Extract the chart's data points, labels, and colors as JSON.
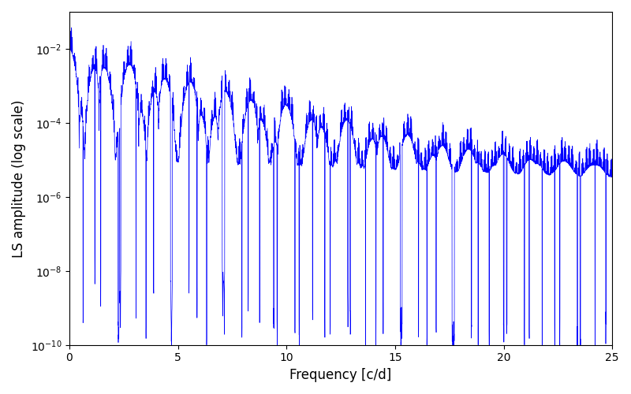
{
  "xlabel": "Frequency [c/d]",
  "ylabel": "LS amplitude (log scale)",
  "line_color": "#0000ff",
  "line_width": 0.5,
  "xlim": [
    0,
    25
  ],
  "ylim": [
    1e-10,
    0.1
  ],
  "x_ticks": [
    0,
    5,
    10,
    15,
    20,
    25
  ],
  "figsize": [
    8.0,
    5.0
  ],
  "dpi": 100,
  "background_color": "#ffffff",
  "seed": 12345,
  "n_points": 5000,
  "freq_max": 25.0
}
